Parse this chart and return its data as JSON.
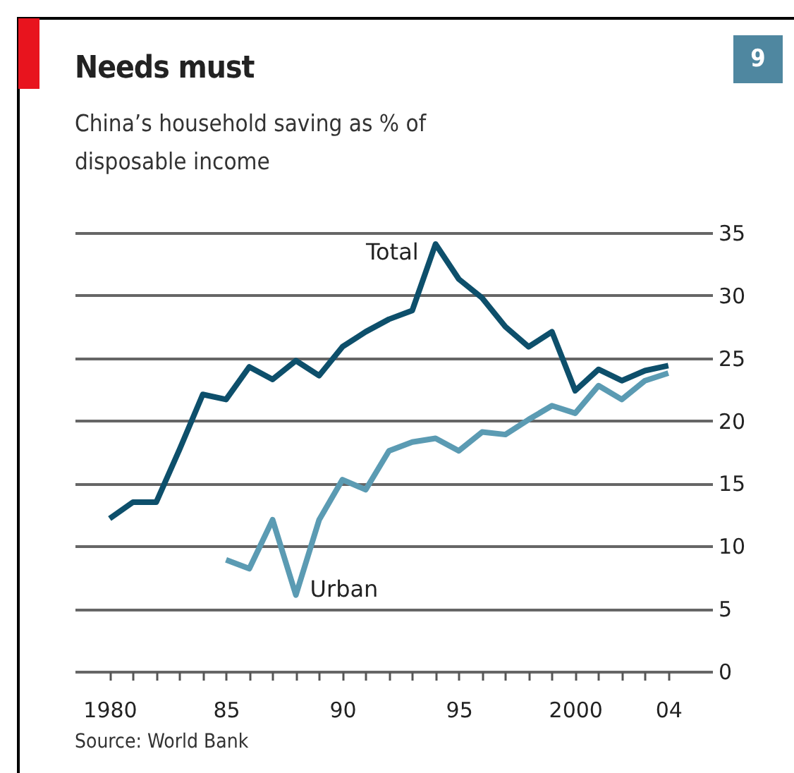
{
  "chart_data": {
    "type": "line",
    "title": "Needs must",
    "subtitle": "China’s household saving as % of disposable income",
    "annotations": [
      "9",
      "Source: World Bank"
    ],
    "x": [
      1980,
      1981,
      1982,
      1983,
      1984,
      1985,
      1986,
      1987,
      1988,
      1989,
      1990,
      1991,
      1992,
      1993,
      1994,
      1995,
      1996,
      1997,
      1998,
      1999,
      2000,
      2001,
      2002,
      2003,
      2004
    ],
    "series": [
      {
        "name": "Total",
        "color": "#0d4f6b",
        "values": [
          12.2,
          13.5,
          13.5,
          17.7,
          22.1,
          21.7,
          24.3,
          23.3,
          24.8,
          23.6,
          25.9,
          27.1,
          28.1,
          28.8,
          34.1,
          31.3,
          29.8,
          27.5,
          25.9,
          27.1,
          22.4,
          24.1,
          23.2,
          24.0,
          24.4
        ]
      },
      {
        "name": "Urban",
        "color": "#5b9bb3",
        "values": [
          null,
          null,
          null,
          null,
          null,
          8.9,
          8.2,
          12.1,
          6.1,
          12.1,
          15.3,
          14.5,
          17.6,
          18.3,
          18.6,
          17.6,
          19.1,
          18.9,
          20.1,
          21.2,
          20.6,
          22.8,
          21.7,
          23.2,
          23.8
        ]
      }
    ],
    "xlim": [
      1978.5,
      2005.4
    ],
    "xticks": [
      {
        "value": 1980,
        "label": "1980"
      },
      {
        "value": 1981,
        "label": null
      },
      {
        "value": 1982,
        "label": null
      },
      {
        "value": 1983,
        "label": null
      },
      {
        "value": 1984,
        "label": null
      },
      {
        "value": 1985,
        "label": "85"
      },
      {
        "value": 1986,
        "label": null
      },
      {
        "value": 1987,
        "label": null
      },
      {
        "value": 1988,
        "label": null
      },
      {
        "value": 1989,
        "label": null
      },
      {
        "value": 1990,
        "label": "90"
      },
      {
        "value": 1991,
        "label": null
      },
      {
        "value": 1992,
        "label": null
      },
      {
        "value": 1993,
        "label": null
      },
      {
        "value": 1994,
        "label": null
      },
      {
        "value": 1995,
        "label": "95"
      },
      {
        "value": 1996,
        "label": null
      },
      {
        "value": 1997,
        "label": null
      },
      {
        "value": 1998,
        "label": null
      },
      {
        "value": 1999,
        "label": null
      },
      {
        "value": 2000,
        "label": "2000"
      },
      {
        "value": 2001,
        "label": null
      },
      {
        "value": 2002,
        "label": null
      },
      {
        "value": 2003,
        "label": null
      },
      {
        "value": 2004,
        "label": "04"
      }
    ],
    "ylim": [
      0,
      35
    ],
    "yticks": [
      0,
      5,
      10,
      15,
      20,
      25,
      30,
      35
    ],
    "grid": "y",
    "legend": false,
    "marker": "none",
    "line_style": "solid"
  }
}
